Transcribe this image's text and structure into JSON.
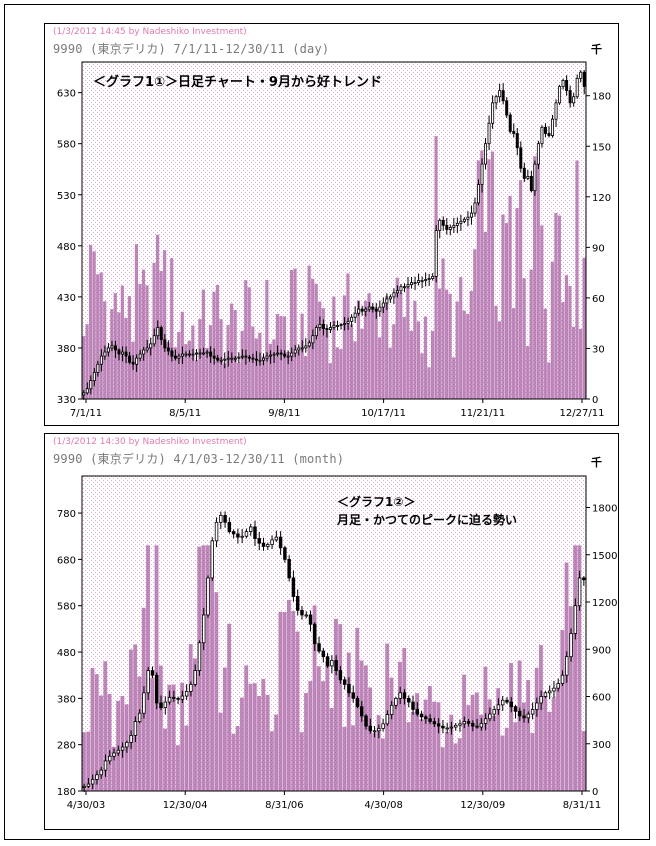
{
  "panels": {
    "day": {
      "credit": "(1/3/2012 14:45 by Nadeshiko Investment)",
      "ticker": "9990 (東京デリカ) 7/1/11-12/30/11 (day)",
      "unit": "千",
      "annotation": "＜グラフ1①＞日足チャート・9月から好トレンド"
    },
    "month": {
      "credit": "(1/3/2012 14:30 by Nadeshiko Investment)",
      "ticker": "9990 (東京デリカ) 4/1/03-12/30/11 (month)",
      "unit": "千",
      "annotation_line1": "＜グラフ1②＞",
      "annotation_line2": "月足・かつてのピークに迫る勢い"
    }
  },
  "colors": {
    "candle_up_fill": "#ffffff",
    "candle_down_fill": "#000000",
    "volume_bar": "#a85fa3",
    "background_dots": "#e2aed4",
    "credit_text": "#e07bb0"
  },
  "chart_data": [
    {
      "type": "candlestick+bar",
      "interval": "day",
      "title": "9990 (東京デリカ) 7/1/11-12/30/11 (day)",
      "xlabel": "",
      "ylabel": "",
      "x_ticks": [
        "7/1/11",
        "8/5/11",
        "9/8/11",
        "10/17/11",
        "11/21/11",
        "12/27/11"
      ],
      "ylim": [
        330,
        660
      ],
      "y_ticks_left": [
        330,
        380,
        430,
        480,
        530,
        580,
        630
      ],
      "y2lim": [
        0,
        200
      ],
      "y_ticks_right": [
        0,
        30,
        60,
        90,
        120,
        150,
        180
      ],
      "y2_unit": "千",
      "grid": false,
      "close": [
        336,
        340,
        348,
        356,
        364,
        372,
        376,
        380,
        382,
        378,
        374,
        376,
        372,
        366,
        364,
        370,
        374,
        378,
        380,
        384,
        392,
        400,
        388,
        380,
        377,
        372,
        370,
        372,
        374,
        374,
        374,
        374,
        375,
        375,
        375,
        376,
        372,
        370,
        368,
        368,
        369,
        370,
        370,
        370,
        371,
        372,
        371,
        370,
        369,
        368,
        368,
        370,
        372,
        373,
        374,
        375,
        374,
        372,
        372,
        375,
        378,
        380,
        380,
        382,
        385,
        392,
        400,
        403,
        399,
        398,
        400,
        402,
        402,
        403,
        404,
        406,
        410,
        414,
        418,
        416,
        418,
        420,
        418,
        416,
        420,
        424,
        428,
        430,
        434,
        436,
        440,
        440,
        442,
        444,
        444,
        446,
        446,
        447,
        448,
        450,
        495,
        505,
        500,
        496,
        498,
        500,
        502,
        504,
        506,
        508,
        512,
        522,
        540,
        560,
        580,
        600,
        620,
        626,
        632,
        622,
        608,
        592,
        590,
        576,
        556,
        546,
        548,
        534,
        560,
        580,
        596,
        590,
        588,
        604,
        620,
        636,
        642,
        632,
        620,
        626,
        644,
        650,
        636
      ]
    },
    {
      "type": "candlestick+bar",
      "interval": "month",
      "title": "9990 (東京デリカ) 4/1/03-12/30/11 (month)",
      "xlabel": "",
      "ylabel": "",
      "x_ticks": [
        "4/30/03",
        "12/30/04",
        "8/31/06",
        "4/30/08",
        "12/30/09",
        "8/31/11"
      ],
      "ylim": [
        180,
        860
      ],
      "y_ticks_left": [
        180,
        280,
        380,
        480,
        580,
        680,
        780
      ],
      "y2lim": [
        0,
        2000
      ],
      "y_ticks_right": [
        0,
        300,
        600,
        900,
        1200,
        1500,
        1800
      ],
      "y2_unit": "千",
      "grid": false,
      "close": [
        190,
        195,
        205,
        215,
        225,
        245,
        255,
        262,
        268,
        275,
        285,
        300,
        330,
        348,
        392,
        440,
        430,
        370,
        360,
        372,
        382,
        380,
        378,
        385,
        395,
        410,
        440,
        500,
        560,
        640,
        720,
        760,
        775,
        760,
        740,
        735,
        728,
        730,
        740,
        750,
        725,
        715,
        708,
        712,
        722,
        728,
        705,
        680,
        640,
        600,
        570,
        560,
        560,
        540,
        498,
        482,
        470,
        450,
        462,
        440,
        420,
        410,
        392,
        380,
        362,
        342,
        320,
        310,
        310,
        315,
        325,
        345,
        365,
        380,
        392,
        380,
        372,
        356,
        346,
        340,
        336,
        330,
        325,
        320,
        316,
        316,
        318,
        322,
        325,
        330,
        326,
        320,
        318,
        326,
        336,
        346,
        356,
        366,
        376,
        372,
        362,
        352,
        342,
        338,
        346,
        356,
        370,
        384,
        392,
        396,
        402,
        412,
        430,
        470,
        520,
        580,
        640,
        636
      ]
    }
  ]
}
